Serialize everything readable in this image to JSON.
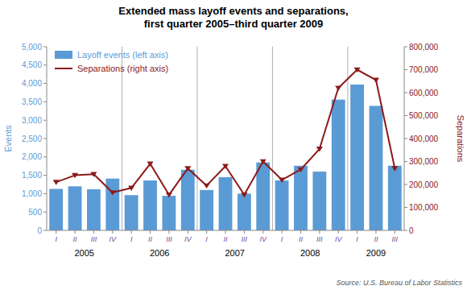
{
  "chart_data": {
    "type": "bar",
    "title": "Extended mass layoff events and separations,\nfirst quarter 2005–third quarter 2009",
    "categories": [
      "I",
      "II",
      "III",
      "IV",
      "I",
      "II",
      "III",
      "IV",
      "I",
      "II",
      "III",
      "IV",
      "I",
      "II",
      "III",
      "IV",
      "I",
      "II",
      "III"
    ],
    "year_labels": [
      "2005",
      "2006",
      "2007",
      "2008",
      "2009"
    ],
    "series": [
      {
        "name": "Layoff events (left axis)",
        "type": "bar",
        "color": "#5B9BD5",
        "values": [
          1130,
          1200,
          1120,
          1410,
          960,
          1360,
          940,
          1650,
          1100,
          1450,
          1000,
          1850,
          1360,
          1760,
          1600,
          3560,
          3970,
          3390,
          1760
        ]
      },
      {
        "name": "Separations (right axis)",
        "type": "line",
        "axis": "y2",
        "color": "#8B1A1A",
        "marker": "triangle_down",
        "line_style": "solid",
        "values": [
          210000,
          240000,
          245000,
          165000,
          185000,
          290000,
          155000,
          270000,
          195000,
          280000,
          155000,
          300000,
          220000,
          265000,
          355000,
          620000,
          700000,
          655000,
          270000
        ]
      }
    ],
    "ylabel": "Events",
    "y2label": "Separations",
    "ylim": [
      0,
      5000
    ],
    "yticks": [
      0,
      500,
      {
        "value": 1000,
        "label": "1,000"
      },
      {
        "value": 1500,
        "label": "1,500"
      },
      {
        "value": 2000,
        "label": "2,000"
      },
      {
        "value": 2500,
        "label": "2,500"
      },
      {
        "value": 3000,
        "label": "3,000"
      },
      {
        "value": 3500,
        "label": "3,500"
      },
      {
        "value": 4000,
        "label": "4,000"
      },
      {
        "value": 4500,
        "label": "4,500"
      },
      {
        "value": 5000,
        "label": "5,000"
      }
    ],
    "y2lim": [
      0,
      800000
    ],
    "y2ticks": [
      0,
      {
        "value": 100000,
        "label": "100,000"
      },
      {
        "value": 200000,
        "label": "200,000"
      },
      {
        "value": 300000,
        "label": "300,000"
      },
      {
        "value": 400000,
        "label": "400,000"
      },
      {
        "value": 500000,
        "label": "500,000"
      },
      {
        "value": 600000,
        "label": "600,000"
      },
      {
        "value": 700000,
        "label": "700,000"
      },
      {
        "value": 800000,
        "label": "800,000"
      }
    ],
    "legend": "upper left",
    "grid": false,
    "source": "Source: U.S. Bureau of Labor Statistics"
  }
}
